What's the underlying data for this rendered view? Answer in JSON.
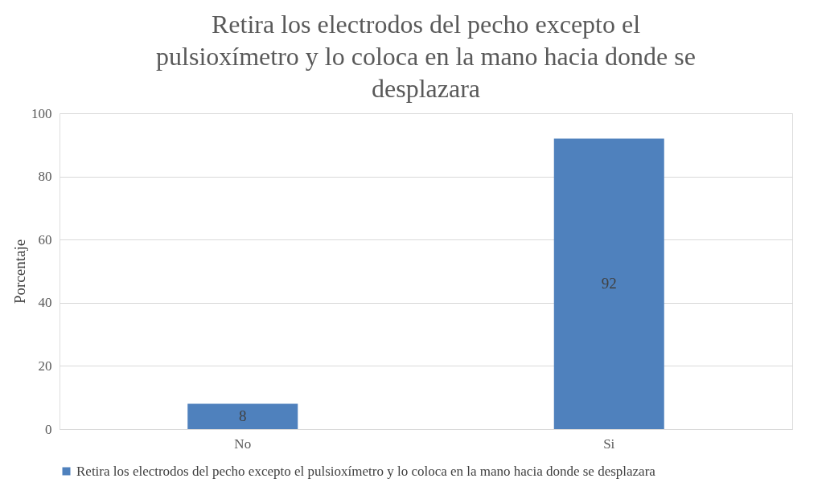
{
  "chart_data": {
    "type": "bar",
    "title": "Retira los electrodos del pecho excepto el pulsioxímetro y lo coloca en la mano hacia donde se desplazara",
    "ylabel": "Porcentaje",
    "categories": [
      "No",
      "Si"
    ],
    "series": [
      {
        "name": "Retira los electrodos del pecho excepto el pulsioxímetro y lo coloca en la mano hacia donde se desplazara",
        "color": "#4f81bd",
        "values": [
          8,
          92
        ]
      }
    ],
    "ylim": [
      0,
      100
    ],
    "yticks": [
      0,
      20,
      40,
      60,
      80,
      100
    ],
    "grid": "y",
    "legend": "bottom",
    "data_labels": true
  }
}
